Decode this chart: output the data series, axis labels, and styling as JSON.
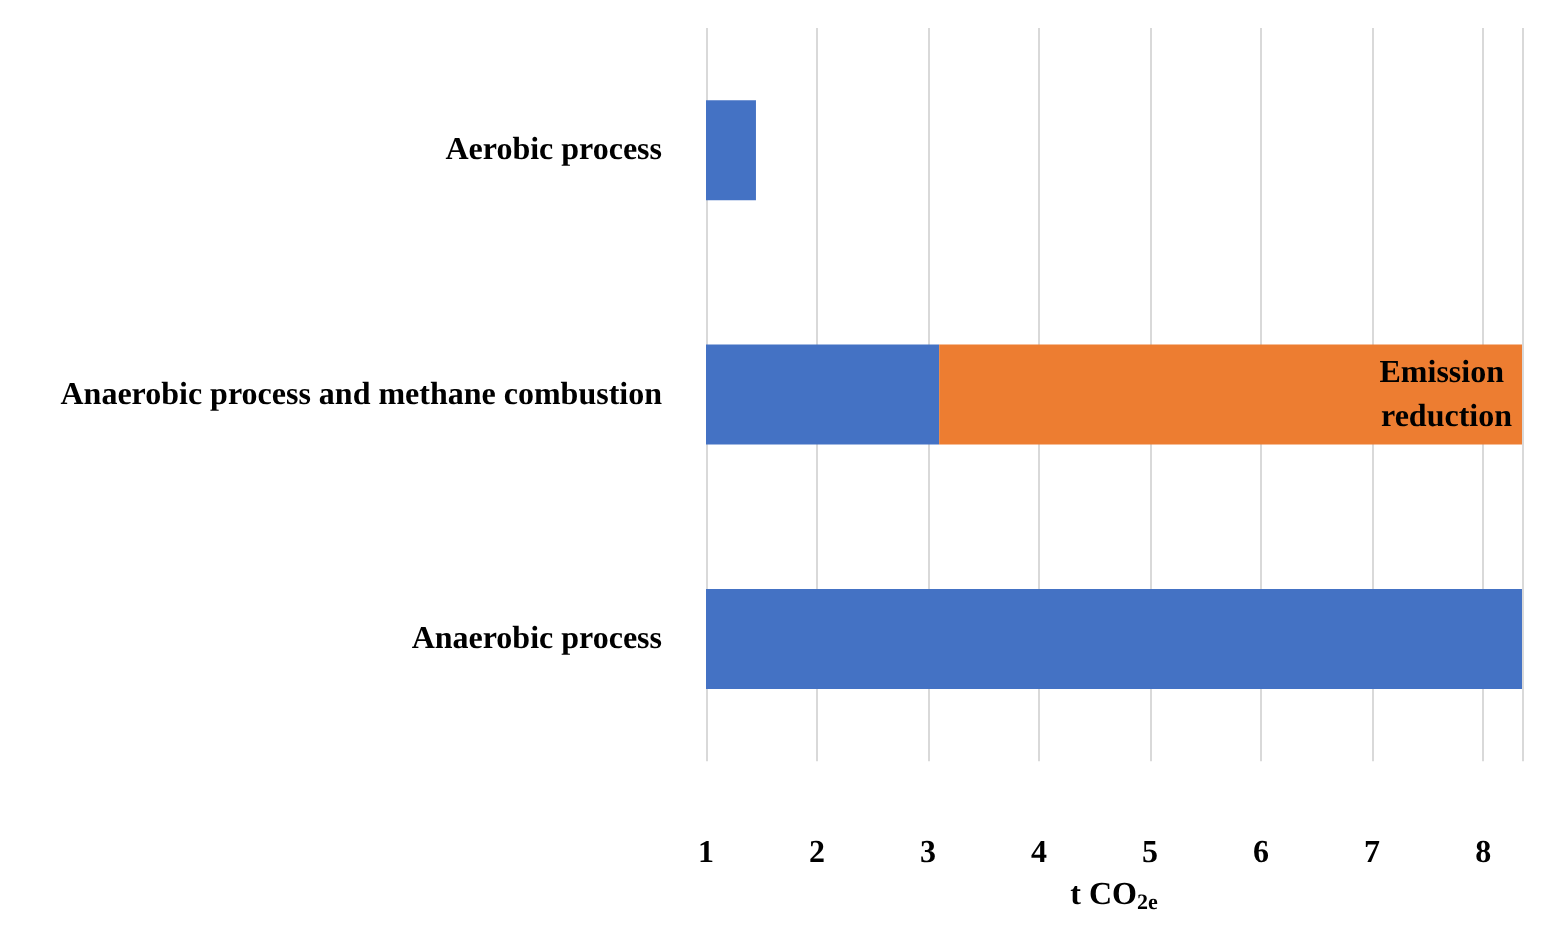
{
  "chart_data": {
    "type": "bar",
    "orientation": "horizontal",
    "stacked": true,
    "xlabel": "t CO$_{2e}$",
    "categories": [
      "Aerobic process",
      "Anaerobic process and methane combustion",
      "Anaerobic process"
    ],
    "series": [
      {
        "color": "#4472c4",
        "values": [
          1.45,
          3.1,
          8.35
        ]
      },
      {
        "name": "Emission reduction",
        "color": "#ed7d31",
        "values": [
          null,
          5.25,
          null
        ]
      }
    ],
    "xlim": [
      1,
      8.35
    ],
    "xticks": [
      1,
      2,
      3,
      4,
      5,
      6,
      7,
      8
    ],
    "grid": "x",
    "legend": false
  }
}
